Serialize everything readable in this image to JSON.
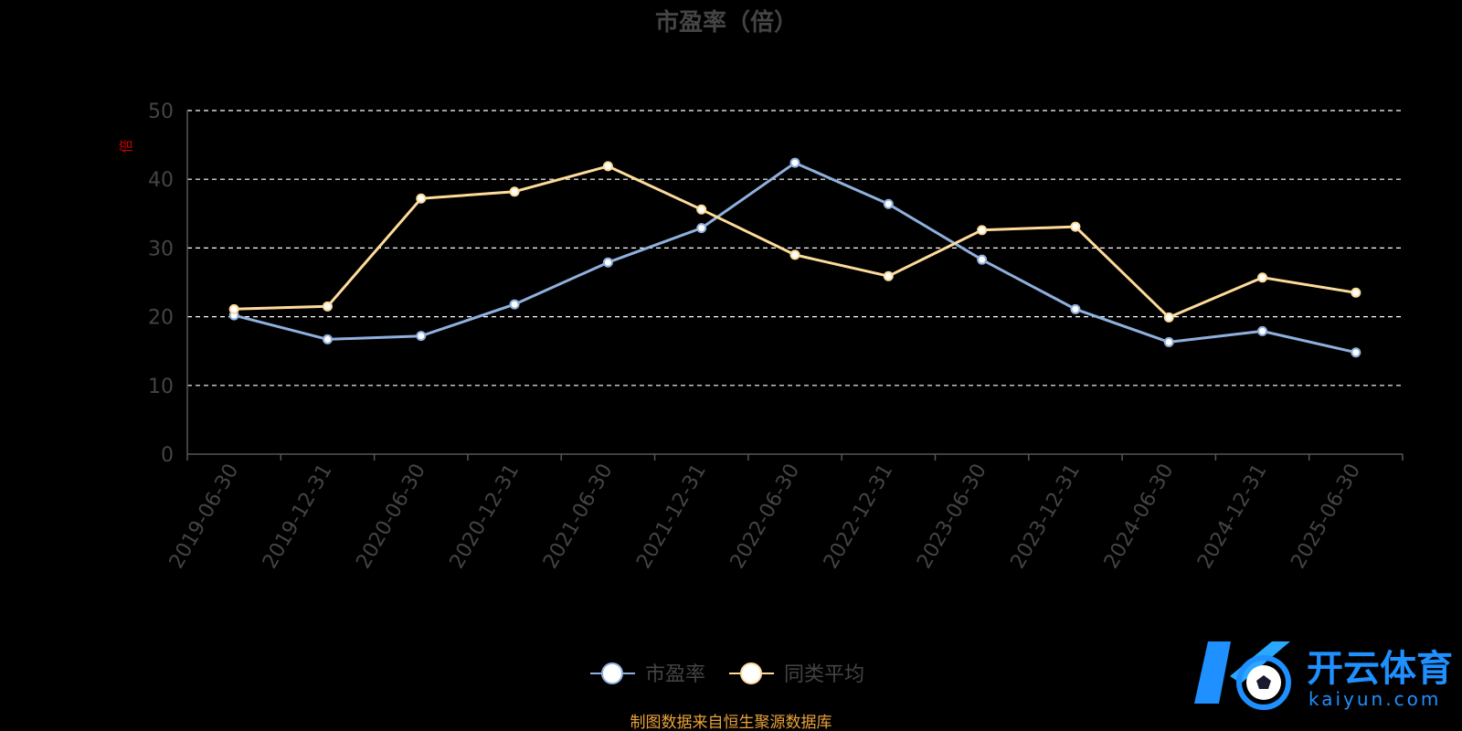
{
  "chart_data": {
    "type": "line",
    "title": "市盈率（倍）",
    "ylabel": "倍",
    "categories": [
      "2019-06-30",
      "2019-12-31",
      "2020-06-30",
      "2020-12-31",
      "2021-06-30",
      "2021-12-31",
      "2022-06-30",
      "2022-12-31",
      "2023-06-30",
      "2023-12-31",
      "2024-06-30",
      "2024-12-31",
      "2025-06-30"
    ],
    "ylim": [
      0,
      50
    ],
    "yticks": [
      0,
      10,
      20,
      30,
      40,
      50
    ],
    "grid": true,
    "legend_position": "bottom-center",
    "series": [
      {
        "name": "市盈率",
        "color": "#8fb0de",
        "values": [
          20.2,
          16.7,
          17.2,
          21.8,
          27.9,
          32.9,
          42.4,
          36.4,
          28.3,
          21.1,
          16.3,
          17.9,
          14.8
        ]
      },
      {
        "name": "同类平均",
        "color": "#fddb9a",
        "values": [
          21.1,
          21.5,
          37.2,
          38.2,
          41.9,
          35.6,
          29.0,
          25.9,
          32.6,
          33.1,
          19.9,
          25.7,
          23.5
        ]
      }
    ]
  },
  "source_note": "制图数据来自恒生聚源数据库",
  "watermark": {
    "brand": "开云体育",
    "domain": "kaiyun.com"
  },
  "colors": {
    "background": "#000000",
    "axis": "#555555",
    "title": "#444444",
    "grid": "#ffffff",
    "source": "#e8a23a",
    "ylabel": "#cc0000",
    "logo_blue": "#1e90ff"
  }
}
